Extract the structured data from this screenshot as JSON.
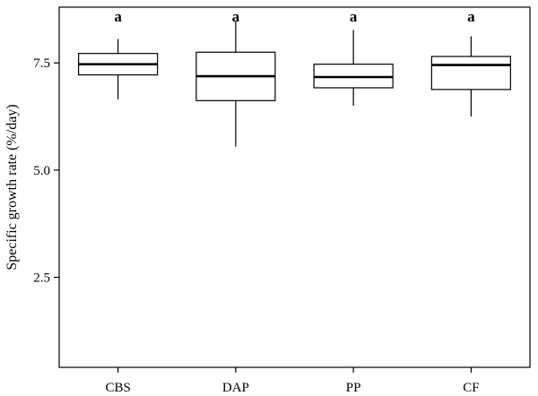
{
  "chart_data": {
    "type": "boxplot",
    "title": "",
    "xlabel": "",
    "ylabel": "Specific growth rate (%/day)",
    "ylim": [
      0.4,
      8.8
    ],
    "yticks": [
      2.5,
      5.0,
      7.5
    ],
    "ytick_labels": [
      "2.5",
      "5.0",
      "7.5"
    ],
    "grid": false,
    "categories": [
      "CBS",
      "DAP",
      "PP",
      "CF"
    ],
    "boxes": [
      {
        "category": "CBS",
        "whisker_low": 6.65,
        "q1": 7.22,
        "median": 7.47,
        "q3": 7.72,
        "whisker_high": 8.06,
        "letter": "a"
      },
      {
        "category": "DAP",
        "whisker_low": 5.55,
        "q1": 6.62,
        "median": 7.19,
        "q3": 7.75,
        "whisker_high": 8.47,
        "letter": "a"
      },
      {
        "category": "PP",
        "whisker_low": 6.5,
        "q1": 6.92,
        "median": 7.17,
        "q3": 7.47,
        "whisker_high": 8.27,
        "letter": "a"
      },
      {
        "category": "CF",
        "whisker_low": 6.25,
        "q1": 6.88,
        "median": 7.45,
        "q3": 7.65,
        "whisker_high": 8.12,
        "letter": "a"
      }
    ]
  }
}
